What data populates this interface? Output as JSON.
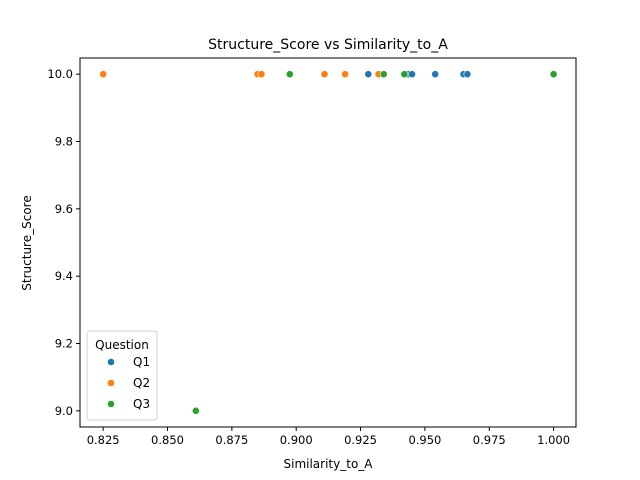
{
  "chart_data": {
    "type": "scatter",
    "title": "Structure_Score vs Similarity_to_A",
    "xlabel": "Similarity_to_A",
    "ylabel": "Structure_Score",
    "xlim": [
      0.816,
      1.0087
    ],
    "ylim": [
      8.952,
      10.048
    ],
    "xticks": [
      "0.825",
      "0.850",
      "0.875",
      "0.900",
      "0.925",
      "0.950",
      "0.975",
      "1.000"
    ],
    "yticks": [
      "9.0",
      "9.2",
      "9.4",
      "9.6",
      "9.8",
      "10.0"
    ],
    "grid": false,
    "legend": {
      "title": "Question",
      "position": "lower left"
    },
    "series": [
      {
        "name": "Q1",
        "color": "#1f77b4",
        "points": [
          [
            0.928,
            10.0
          ],
          [
            0.9435,
            10.0
          ],
          [
            0.945,
            10.0
          ],
          [
            0.954,
            10.0
          ],
          [
            0.965,
            10.0
          ],
          [
            0.9665,
            10.0
          ]
        ]
      },
      {
        "name": "Q2",
        "color": "#ff7f0e",
        "points": [
          [
            0.825,
            10.0
          ],
          [
            0.885,
            10.0
          ],
          [
            0.8865,
            10.0
          ],
          [
            0.911,
            10.0
          ],
          [
            0.919,
            10.0
          ],
          [
            0.932,
            10.0
          ]
        ]
      },
      {
        "name": "Q3",
        "color": "#2ca02c",
        "points": [
          [
            0.861,
            9.0
          ],
          [
            0.8975,
            10.0
          ],
          [
            0.934,
            10.0
          ],
          [
            0.942,
            10.0
          ],
          [
            1.0,
            10.0
          ]
        ]
      }
    ]
  }
}
